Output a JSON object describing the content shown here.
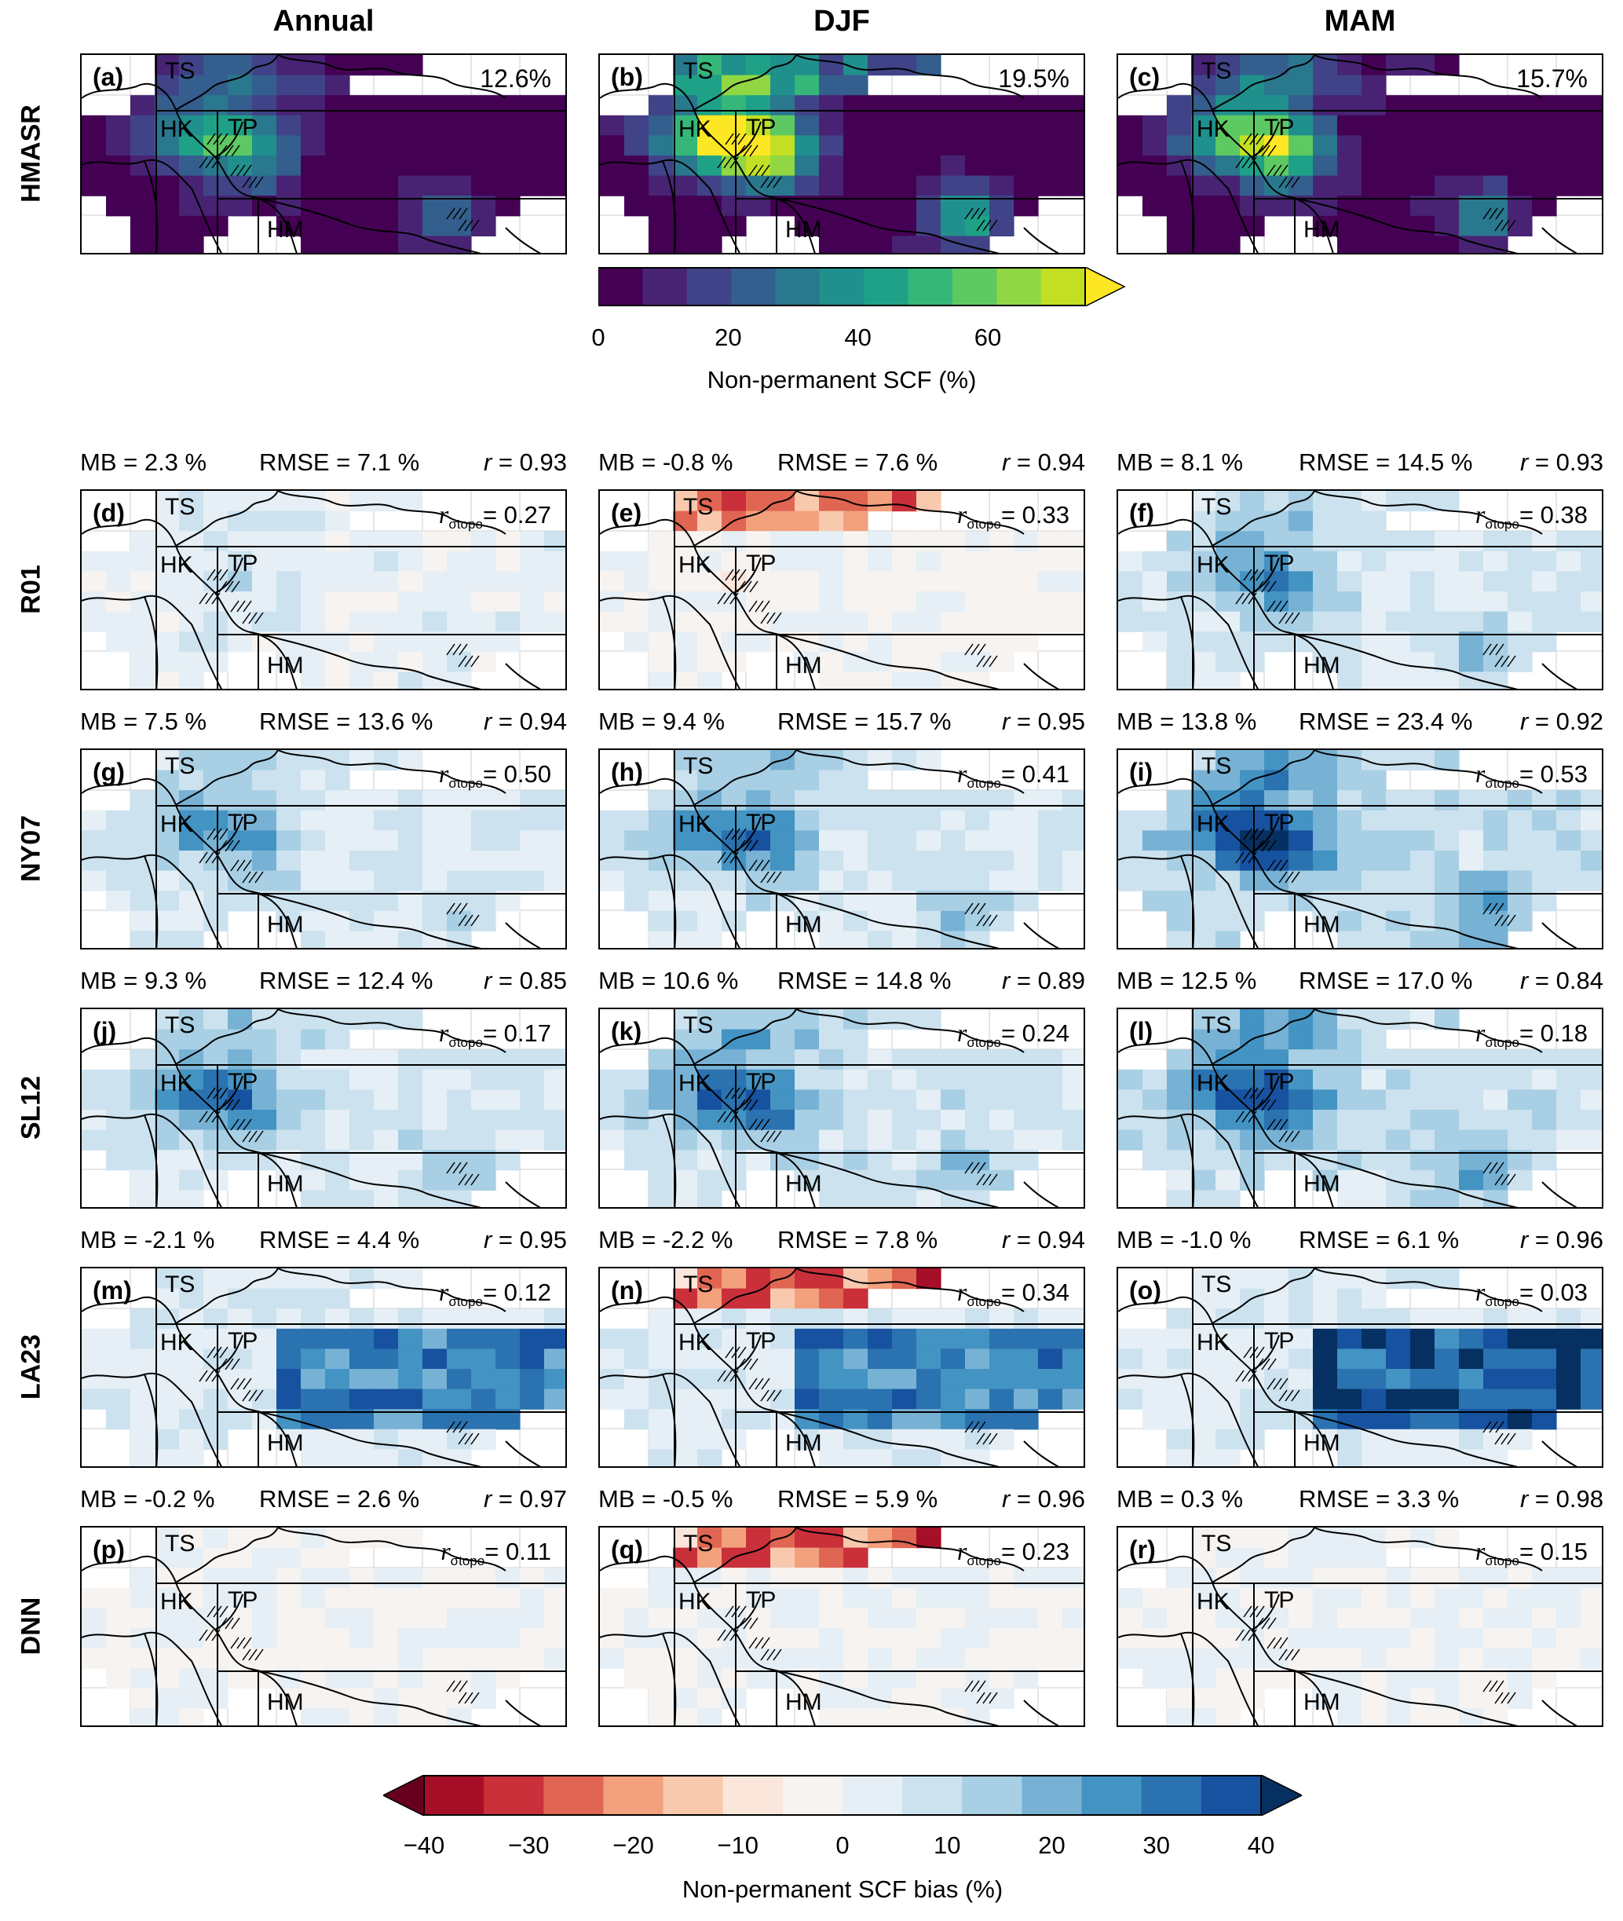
{
  "columns": [
    "Annual",
    "DJF",
    "MAM"
  ],
  "rows": [
    "HMASR",
    "R01",
    "NY07",
    "SL12",
    "LA23",
    "DNN"
  ],
  "regions": [
    "TS",
    "HK",
    "TP",
    "HM"
  ],
  "top_row": {
    "panels": [
      {
        "label": "(a)",
        "value": "12.6%"
      },
      {
        "label": "(b)",
        "value": "19.5%"
      },
      {
        "label": "(c)",
        "value": "15.7%"
      }
    ]
  },
  "bias_rows": [
    {
      "model": "R01",
      "panels": [
        {
          "label": "(d)",
          "mb": "MB = 2.3 %",
          "rmse": "RMSE = 7.1 %",
          "r": "0.93",
          "rtopo": "= 0.27"
        },
        {
          "label": "(e)",
          "mb": "MB = -0.8 %",
          "rmse": "RMSE = 7.6 %",
          "r": "0.94",
          "rtopo": "= 0.33"
        },
        {
          "label": "(f)",
          "mb": "MB = 8.1 %",
          "rmse": "RMSE = 14.5 %",
          "r": "0.93",
          "rtopo": "= 0.38"
        }
      ]
    },
    {
      "model": "NY07",
      "panels": [
        {
          "label": "(g)",
          "mb": "MB = 7.5 %",
          "rmse": "RMSE = 13.6 %",
          "r": "0.94",
          "rtopo": "= 0.50"
        },
        {
          "label": "(h)",
          "mb": "MB = 9.4 %",
          "rmse": "RMSE = 15.7 %",
          "r": "0.95",
          "rtopo": "= 0.41"
        },
        {
          "label": "(i)",
          "mb": "MB = 13.8 %",
          "rmse": "RMSE = 23.4 %",
          "r": "0.92",
          "rtopo": "= 0.53"
        }
      ]
    },
    {
      "model": "SL12",
      "panels": [
        {
          "label": "(j)",
          "mb": "MB = 9.3 %",
          "rmse": "RMSE = 12.4 %",
          "r": "0.85",
          "rtopo": "= 0.17"
        },
        {
          "label": "(k)",
          "mb": "MB = 10.6 %",
          "rmse": "RMSE = 14.8 %",
          "r": "0.89",
          "rtopo": "= 0.24"
        },
        {
          "label": "(l)",
          "mb": "MB = 12.5 %",
          "rmse": "RMSE = 17.0 %",
          "r": "0.84",
          "rtopo": "= 0.18"
        }
      ]
    },
    {
      "model": "LA23",
      "panels": [
        {
          "label": "(m)",
          "mb": "MB = -2.1 %",
          "rmse": "RMSE = 4.4 %",
          "r": "0.95",
          "rtopo": "= 0.12"
        },
        {
          "label": "(n)",
          "mb": "MB = -2.2 %",
          "rmse": "RMSE = 7.8 %",
          "r": "0.94",
          "rtopo": "= 0.34"
        },
        {
          "label": "(o)",
          "mb": "MB = -1.0 %",
          "rmse": "RMSE = 6.1 %",
          "r": "0.96",
          "rtopo": "= 0.03"
        }
      ]
    },
    {
      "model": "DNN",
      "panels": [
        {
          "label": "(p)",
          "mb": "MB = -0.2 %",
          "rmse": "RMSE = 2.6 %",
          "r": "0.97",
          "rtopo": "= 0.11"
        },
        {
          "label": "(q)",
          "mb": "MB = -0.5 %",
          "rmse": "RMSE = 5.9 %",
          "r": "0.96",
          "rtopo": "= 0.23"
        },
        {
          "label": "(r)",
          "mb": "MB = 0.3 %",
          "rmse": "RMSE = 3.3 %",
          "r": "0.98",
          "rtopo": "= 0.15"
        }
      ]
    }
  ],
  "stat_symbols": {
    "r": "r",
    "rtopo_r": "r",
    "rtopo_sub": "σtopo",
    "r_eq": " = "
  },
  "colorbar_scf": {
    "label": "Non-permanent SCF (%)",
    "ticks": [
      "0",
      "20",
      "40",
      "60"
    ],
    "range": [
      0,
      75
    ],
    "extend": "max",
    "colors": [
      "#440154",
      "#482374",
      "#404387",
      "#345e8d",
      "#29788e",
      "#20908d",
      "#1fa187",
      "#35b779",
      "#5ec962",
      "#90d743",
      "#c2df23",
      "#fde725"
    ]
  },
  "colorbar_bias": {
    "label": "Non-permanent SCF bias (%)",
    "ticks": [
      "−40",
      "−30",
      "−20",
      "−10",
      "0",
      "10",
      "20",
      "30",
      "40"
    ],
    "range": [
      -40,
      40
    ],
    "extend": "both",
    "colors": [
      "#67001f",
      "#a50f27",
      "#c9303a",
      "#e06552",
      "#f3a07d",
      "#f9c9ae",
      "#fbe6db",
      "#f7f3f0",
      "#e5eff5",
      "#cce2ef",
      "#a8cfe4",
      "#77b2d5",
      "#4393c3",
      "#2a72b0",
      "#1752a0",
      "#053061"
    ]
  },
  "chart_data": [
    {
      "type": "heatmap",
      "title": "Annual",
      "row": "HMASR",
      "panel": "(a)",
      "value": "12.6%"
    },
    {
      "type": "heatmap",
      "title": "DJF",
      "row": "HMASR",
      "panel": "(b)",
      "value": "19.5%"
    },
    {
      "type": "heatmap",
      "title": "MAM",
      "row": "HMASR",
      "panel": "(c)",
      "value": "15.7%"
    },
    {
      "type": "heatmap",
      "row": "R01",
      "panels": [
        "(d)",
        "(e)",
        "(f)"
      ],
      "MB": [
        2.3,
        -0.8,
        8.1
      ],
      "RMSE": [
        7.1,
        7.6,
        14.5
      ],
      "r": [
        0.93,
        0.94,
        0.93
      ],
      "r_sigma_topo": [
        0.27,
        0.33,
        0.38
      ]
    },
    {
      "type": "heatmap",
      "row": "NY07",
      "panels": [
        "(g)",
        "(h)",
        "(i)"
      ],
      "MB": [
        7.5,
        9.4,
        13.8
      ],
      "RMSE": [
        13.6,
        15.7,
        23.4
      ],
      "r": [
        0.94,
        0.95,
        0.92
      ],
      "r_sigma_topo": [
        0.5,
        0.41,
        0.53
      ]
    },
    {
      "type": "heatmap",
      "row": "SL12",
      "panels": [
        "(j)",
        "(k)",
        "(l)"
      ],
      "MB": [
        9.3,
        10.6,
        12.5
      ],
      "RMSE": [
        12.4,
        14.8,
        17.0
      ],
      "r": [
        0.85,
        0.89,
        0.84
      ],
      "r_sigma_topo": [
        0.17,
        0.24,
        0.18
      ]
    },
    {
      "type": "heatmap",
      "row": "LA23",
      "panels": [
        "(m)",
        "(n)",
        "(o)"
      ],
      "MB": [
        -2.1,
        -2.2,
        -1.0
      ],
      "RMSE": [
        4.4,
        7.8,
        6.1
      ],
      "r": [
        0.95,
        0.94,
        0.96
      ],
      "r_sigma_topo": [
        0.12,
        0.34,
        0.03
      ]
    },
    {
      "type": "heatmap",
      "row": "DNN",
      "panels": [
        "(p)",
        "(q)",
        "(r)"
      ],
      "MB": [
        -0.2,
        -0.5,
        0.3
      ],
      "RMSE": [
        2.6,
        5.9,
        3.3
      ],
      "r": [
        0.97,
        0.96,
        0.98
      ],
      "r_sigma_topo": [
        0.11,
        0.23,
        0.15
      ]
    }
  ]
}
